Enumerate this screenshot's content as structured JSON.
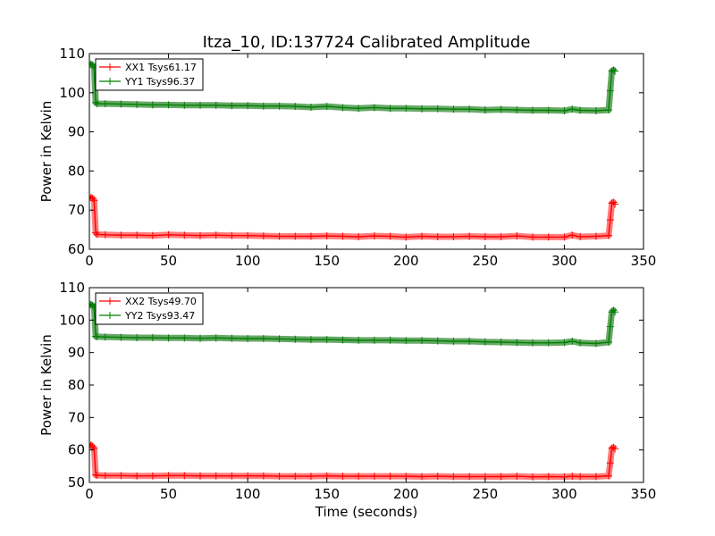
{
  "figure": {
    "title": "Itza_10, ID:137724 Calibrated Amplitude"
  },
  "colors": {
    "xx": "#ff0000",
    "yy": "#008000",
    "band_xx": "#ff6666",
    "band_yy": "#4d994d"
  },
  "chart_data": [
    {
      "type": "line",
      "xlabel": "",
      "ylabel": "Power in Kelvin",
      "xlim": [
        0,
        350
      ],
      "ylim": [
        60,
        110
      ],
      "xticks": [
        "0",
        "50",
        "100",
        "150",
        "200",
        "250",
        "300",
        "350"
      ],
      "yticks": [
        "60",
        "70",
        "80",
        "90",
        "100",
        "110"
      ],
      "legend_position": "top-left",
      "series": [
        {
          "name": "XX1 Tsys61.17",
          "color_key": "xx",
          "x": [
            0,
            1,
            2,
            3,
            4,
            5,
            10,
            20,
            30,
            40,
            50,
            60,
            70,
            80,
            90,
            100,
            110,
            120,
            130,
            140,
            150,
            160,
            170,
            180,
            190,
            200,
            210,
            220,
            230,
            240,
            250,
            260,
            270,
            280,
            290,
            300,
            305,
            310,
            320,
            328,
            329,
            330,
            331,
            332
          ],
          "y": [
            73.5,
            73.2,
            73.0,
            72.5,
            64.2,
            63.8,
            63.7,
            63.6,
            63.6,
            63.5,
            63.7,
            63.6,
            63.5,
            63.6,
            63.5,
            63.5,
            63.4,
            63.3,
            63.3,
            63.3,
            63.4,
            63.3,
            63.2,
            63.4,
            63.3,
            63.1,
            63.3,
            63.2,
            63.2,
            63.3,
            63.2,
            63.2,
            63.4,
            63.1,
            63.1,
            63.1,
            63.6,
            63.2,
            63.3,
            63.5,
            67.5,
            71.8,
            72.0,
            71.5
          ]
        },
        {
          "name": "YY1 Tsys96.37",
          "color_key": "yy",
          "x": [
            0,
            1,
            2,
            3,
            4,
            5,
            10,
            20,
            30,
            40,
            50,
            60,
            70,
            80,
            90,
            100,
            110,
            120,
            130,
            140,
            150,
            160,
            170,
            180,
            190,
            200,
            210,
            220,
            230,
            240,
            250,
            260,
            270,
            280,
            290,
            300,
            305,
            310,
            320,
            328,
            329,
            330,
            331,
            332
          ],
          "y": [
            107.5,
            107.3,
            107.0,
            106.5,
            97.5,
            97.2,
            97.2,
            97.1,
            97.0,
            96.9,
            96.9,
            96.8,
            96.8,
            96.8,
            96.7,
            96.7,
            96.6,
            96.6,
            96.5,
            96.3,
            96.5,
            96.2,
            96.0,
            96.2,
            96.0,
            96.0,
            95.9,
            95.9,
            95.8,
            95.8,
            95.6,
            95.7,
            95.6,
            95.5,
            95.5,
            95.4,
            95.8,
            95.5,
            95.4,
            95.6,
            100.5,
            105.5,
            105.8,
            105.5
          ]
        }
      ]
    },
    {
      "type": "line",
      "xlabel": "Time (seconds)",
      "ylabel": "Power in Kelvin",
      "xlim": [
        0,
        350
      ],
      "ylim": [
        50,
        110
      ],
      "xticks": [
        "0",
        "50",
        "100",
        "150",
        "200",
        "250",
        "300",
        "350"
      ],
      "yticks": [
        "50",
        "60",
        "70",
        "80",
        "90",
        "100",
        "110"
      ],
      "legend_position": "top-left",
      "series": [
        {
          "name": "XX2 Tsys49.70",
          "color_key": "xx",
          "x": [
            0,
            1,
            2,
            3,
            4,
            5,
            10,
            20,
            30,
            40,
            50,
            60,
            70,
            80,
            90,
            100,
            110,
            120,
            130,
            140,
            150,
            160,
            170,
            180,
            190,
            200,
            210,
            220,
            230,
            240,
            250,
            260,
            270,
            280,
            290,
            300,
            305,
            310,
            320,
            328,
            329,
            330,
            331,
            332
          ],
          "y": [
            61.8,
            61.5,
            61.0,
            60.5,
            52.3,
            52.2,
            52.1,
            52.1,
            52.0,
            52.0,
            52.1,
            52.1,
            52.0,
            52.0,
            52.0,
            52.0,
            52.0,
            51.9,
            51.9,
            51.9,
            52.0,
            51.9,
            51.9,
            51.9,
            51.9,
            51.9,
            51.8,
            51.9,
            51.8,
            51.8,
            51.8,
            51.8,
            51.9,
            51.7,
            51.8,
            51.7,
            51.9,
            51.8,
            51.8,
            52.0,
            56.0,
            60.5,
            60.8,
            60.3
          ]
        },
        {
          "name": "YY2 Tsys93.47",
          "color_key": "yy",
          "x": [
            0,
            1,
            2,
            3,
            4,
            5,
            10,
            20,
            30,
            40,
            50,
            60,
            70,
            80,
            90,
            100,
            110,
            120,
            130,
            140,
            150,
            160,
            170,
            180,
            190,
            200,
            210,
            220,
            230,
            240,
            250,
            260,
            270,
            280,
            290,
            300,
            305,
            310,
            320,
            328,
            329,
            330,
            331,
            332
          ],
          "y": [
            105.0,
            104.8,
            104.5,
            104.0,
            95.0,
            94.9,
            94.8,
            94.7,
            94.6,
            94.6,
            94.5,
            94.5,
            94.4,
            94.5,
            94.4,
            94.3,
            94.3,
            94.2,
            94.1,
            94.0,
            94.0,
            93.9,
            93.8,
            93.8,
            93.8,
            93.7,
            93.7,
            93.6,
            93.5,
            93.5,
            93.3,
            93.2,
            93.1,
            93.0,
            93.0,
            93.1,
            93.5,
            93.0,
            92.8,
            93.2,
            98.0,
            102.5,
            103.0,
            102.5
          ]
        }
      ]
    }
  ]
}
